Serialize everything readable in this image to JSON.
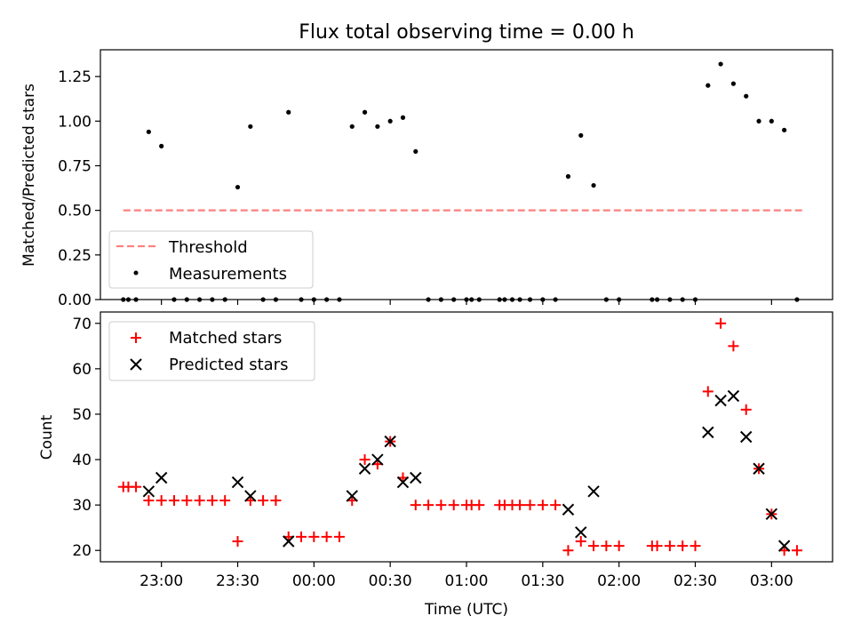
{
  "chart_data": [
    {
      "type": "scatter",
      "title": "Flux total observing time = 0.00 h",
      "ylabel": "Matched/Predicted stars",
      "ylim": [
        0.0,
        1.4
      ],
      "yticks": [
        "0.00",
        "0.25",
        "0.50",
        "0.75",
        "1.00",
        "1.25"
      ],
      "xlim": [
        "22:36",
        "03:24"
      ],
      "threshold": {
        "name": "Threshold",
        "value": 0.5,
        "x_range": [
          "22:45",
          "03:12"
        ],
        "color": "#ff7f7f"
      },
      "series": [
        {
          "name": "Measurements",
          "color": "#000000",
          "marker": "dot",
          "points": [
            [
              "22:45",
              0.0
            ],
            [
              "22:47",
              0.0
            ],
            [
              "22:50",
              0.0
            ],
            [
              "22:55",
              0.94
            ],
            [
              "23:00",
              0.86
            ],
            [
              "23:05",
              0.0
            ],
            [
              "23:10",
              0.0
            ],
            [
              "23:15",
              0.0
            ],
            [
              "23:20",
              0.0
            ],
            [
              "23:25",
              0.0
            ],
            [
              "23:30",
              0.63
            ],
            [
              "23:35",
              0.97
            ],
            [
              "23:40",
              0.0
            ],
            [
              "23:45",
              0.0
            ],
            [
              "23:50",
              1.05
            ],
            [
              "23:55",
              0.0
            ],
            [
              "00:00",
              0.0
            ],
            [
              "00:05",
              0.0
            ],
            [
              "00:10",
              0.0
            ],
            [
              "00:15",
              0.97
            ],
            [
              "00:20",
              1.05
            ],
            [
              "00:25",
              0.97
            ],
            [
              "00:30",
              1.0
            ],
            [
              "00:35",
              1.02
            ],
            [
              "00:40",
              0.83
            ],
            [
              "00:45",
              0.0
            ],
            [
              "00:50",
              0.0
            ],
            [
              "00:55",
              0.0
            ],
            [
              "01:00",
              0.0
            ],
            [
              "01:02",
              0.0
            ],
            [
              "01:05",
              0.0
            ],
            [
              "01:13",
              0.0
            ],
            [
              "01:15",
              0.0
            ],
            [
              "01:18",
              0.0
            ],
            [
              "01:21",
              0.0
            ],
            [
              "01:25",
              0.0
            ],
            [
              "01:30",
              0.0
            ],
            [
              "01:35",
              0.0
            ],
            [
              "01:40",
              0.69
            ],
            [
              "01:45",
              0.92
            ],
            [
              "01:50",
              0.64
            ],
            [
              "01:55",
              0.0
            ],
            [
              "02:00",
              0.0
            ],
            [
              "02:13",
              0.0
            ],
            [
              "02:15",
              0.0
            ],
            [
              "02:20",
              0.0
            ],
            [
              "02:25",
              0.0
            ],
            [
              "02:30",
              0.0
            ],
            [
              "02:35",
              1.2
            ],
            [
              "02:40",
              1.32
            ],
            [
              "02:45",
              1.21
            ],
            [
              "02:50",
              1.14
            ],
            [
              "02:55",
              1.0
            ],
            [
              "03:00",
              1.0
            ],
            [
              "03:05",
              0.95
            ],
            [
              "03:10",
              0.0
            ]
          ]
        }
      ],
      "legend": "lower-left"
    },
    {
      "type": "scatter",
      "ylabel": "Count",
      "xlabel": "Time (UTC)",
      "ylim": [
        17.5,
        72.5
      ],
      "yticks": [
        "20",
        "30",
        "40",
        "50",
        "60",
        "70"
      ],
      "xlim": [
        "22:36",
        "03:24"
      ],
      "xticks": [
        "23:00",
        "23:30",
        "00:00",
        "00:30",
        "01:00",
        "01:30",
        "02:00",
        "02:30",
        "03:00"
      ],
      "series": [
        {
          "name": "Matched stars",
          "color": "#ff0000",
          "marker": "plus",
          "points": [
            [
              "22:45",
              34
            ],
            [
              "22:47",
              34
            ],
            [
              "22:50",
              34
            ],
            [
              "22:55",
              31
            ],
            [
              "23:00",
              31
            ],
            [
              "23:05",
              31
            ],
            [
              "23:10",
              31
            ],
            [
              "23:15",
              31
            ],
            [
              "23:20",
              31
            ],
            [
              "23:25",
              31
            ],
            [
              "23:30",
              22
            ],
            [
              "23:35",
              31
            ],
            [
              "23:40",
              31
            ],
            [
              "23:45",
              31
            ],
            [
              "23:50",
              23
            ],
            [
              "23:55",
              23
            ],
            [
              "00:00",
              23
            ],
            [
              "00:05",
              23
            ],
            [
              "00:10",
              23
            ],
            [
              "00:15",
              31
            ],
            [
              "00:20",
              40
            ],
            [
              "00:25",
              39
            ],
            [
              "00:30",
              44
            ],
            [
              "00:35",
              36
            ],
            [
              "00:40",
              30
            ],
            [
              "00:45",
              30
            ],
            [
              "00:50",
              30
            ],
            [
              "00:55",
              30
            ],
            [
              "01:00",
              30
            ],
            [
              "01:02",
              30
            ],
            [
              "01:05",
              30
            ],
            [
              "01:13",
              30
            ],
            [
              "01:15",
              30
            ],
            [
              "01:18",
              30
            ],
            [
              "01:21",
              30
            ],
            [
              "01:25",
              30
            ],
            [
              "01:30",
              30
            ],
            [
              "01:35",
              30
            ],
            [
              "01:40",
              20
            ],
            [
              "01:45",
              22
            ],
            [
              "01:50",
              21
            ],
            [
              "01:55",
              21
            ],
            [
              "02:00",
              21
            ],
            [
              "02:13",
              21
            ],
            [
              "02:15",
              21
            ],
            [
              "02:20",
              21
            ],
            [
              "02:25",
              21
            ],
            [
              "02:30",
              21
            ],
            [
              "02:35",
              55
            ],
            [
              "02:40",
              70
            ],
            [
              "02:45",
              65
            ],
            [
              "02:50",
              51
            ],
            [
              "02:55",
              38
            ],
            [
              "03:00",
              28
            ],
            [
              "03:05",
              20
            ],
            [
              "03:10",
              20
            ]
          ]
        },
        {
          "name": "Predicted stars",
          "color": "#000000",
          "marker": "x",
          "points": [
            [
              "22:55",
              33
            ],
            [
              "23:00",
              36
            ],
            [
              "23:30",
              35
            ],
            [
              "23:35",
              32
            ],
            [
              "23:50",
              22
            ],
            [
              "00:15",
              32
            ],
            [
              "00:20",
              38
            ],
            [
              "00:25",
              40
            ],
            [
              "00:30",
              44
            ],
            [
              "00:35",
              35
            ],
            [
              "00:40",
              36
            ],
            [
              "01:40",
              29
            ],
            [
              "01:45",
              24
            ],
            [
              "01:50",
              33
            ],
            [
              "02:35",
              46
            ],
            [
              "02:40",
              53
            ],
            [
              "02:45",
              54
            ],
            [
              "02:50",
              45
            ],
            [
              "02:55",
              38
            ],
            [
              "03:00",
              28
            ],
            [
              "03:05",
              21
            ]
          ]
        }
      ],
      "legend": "upper-left"
    }
  ]
}
